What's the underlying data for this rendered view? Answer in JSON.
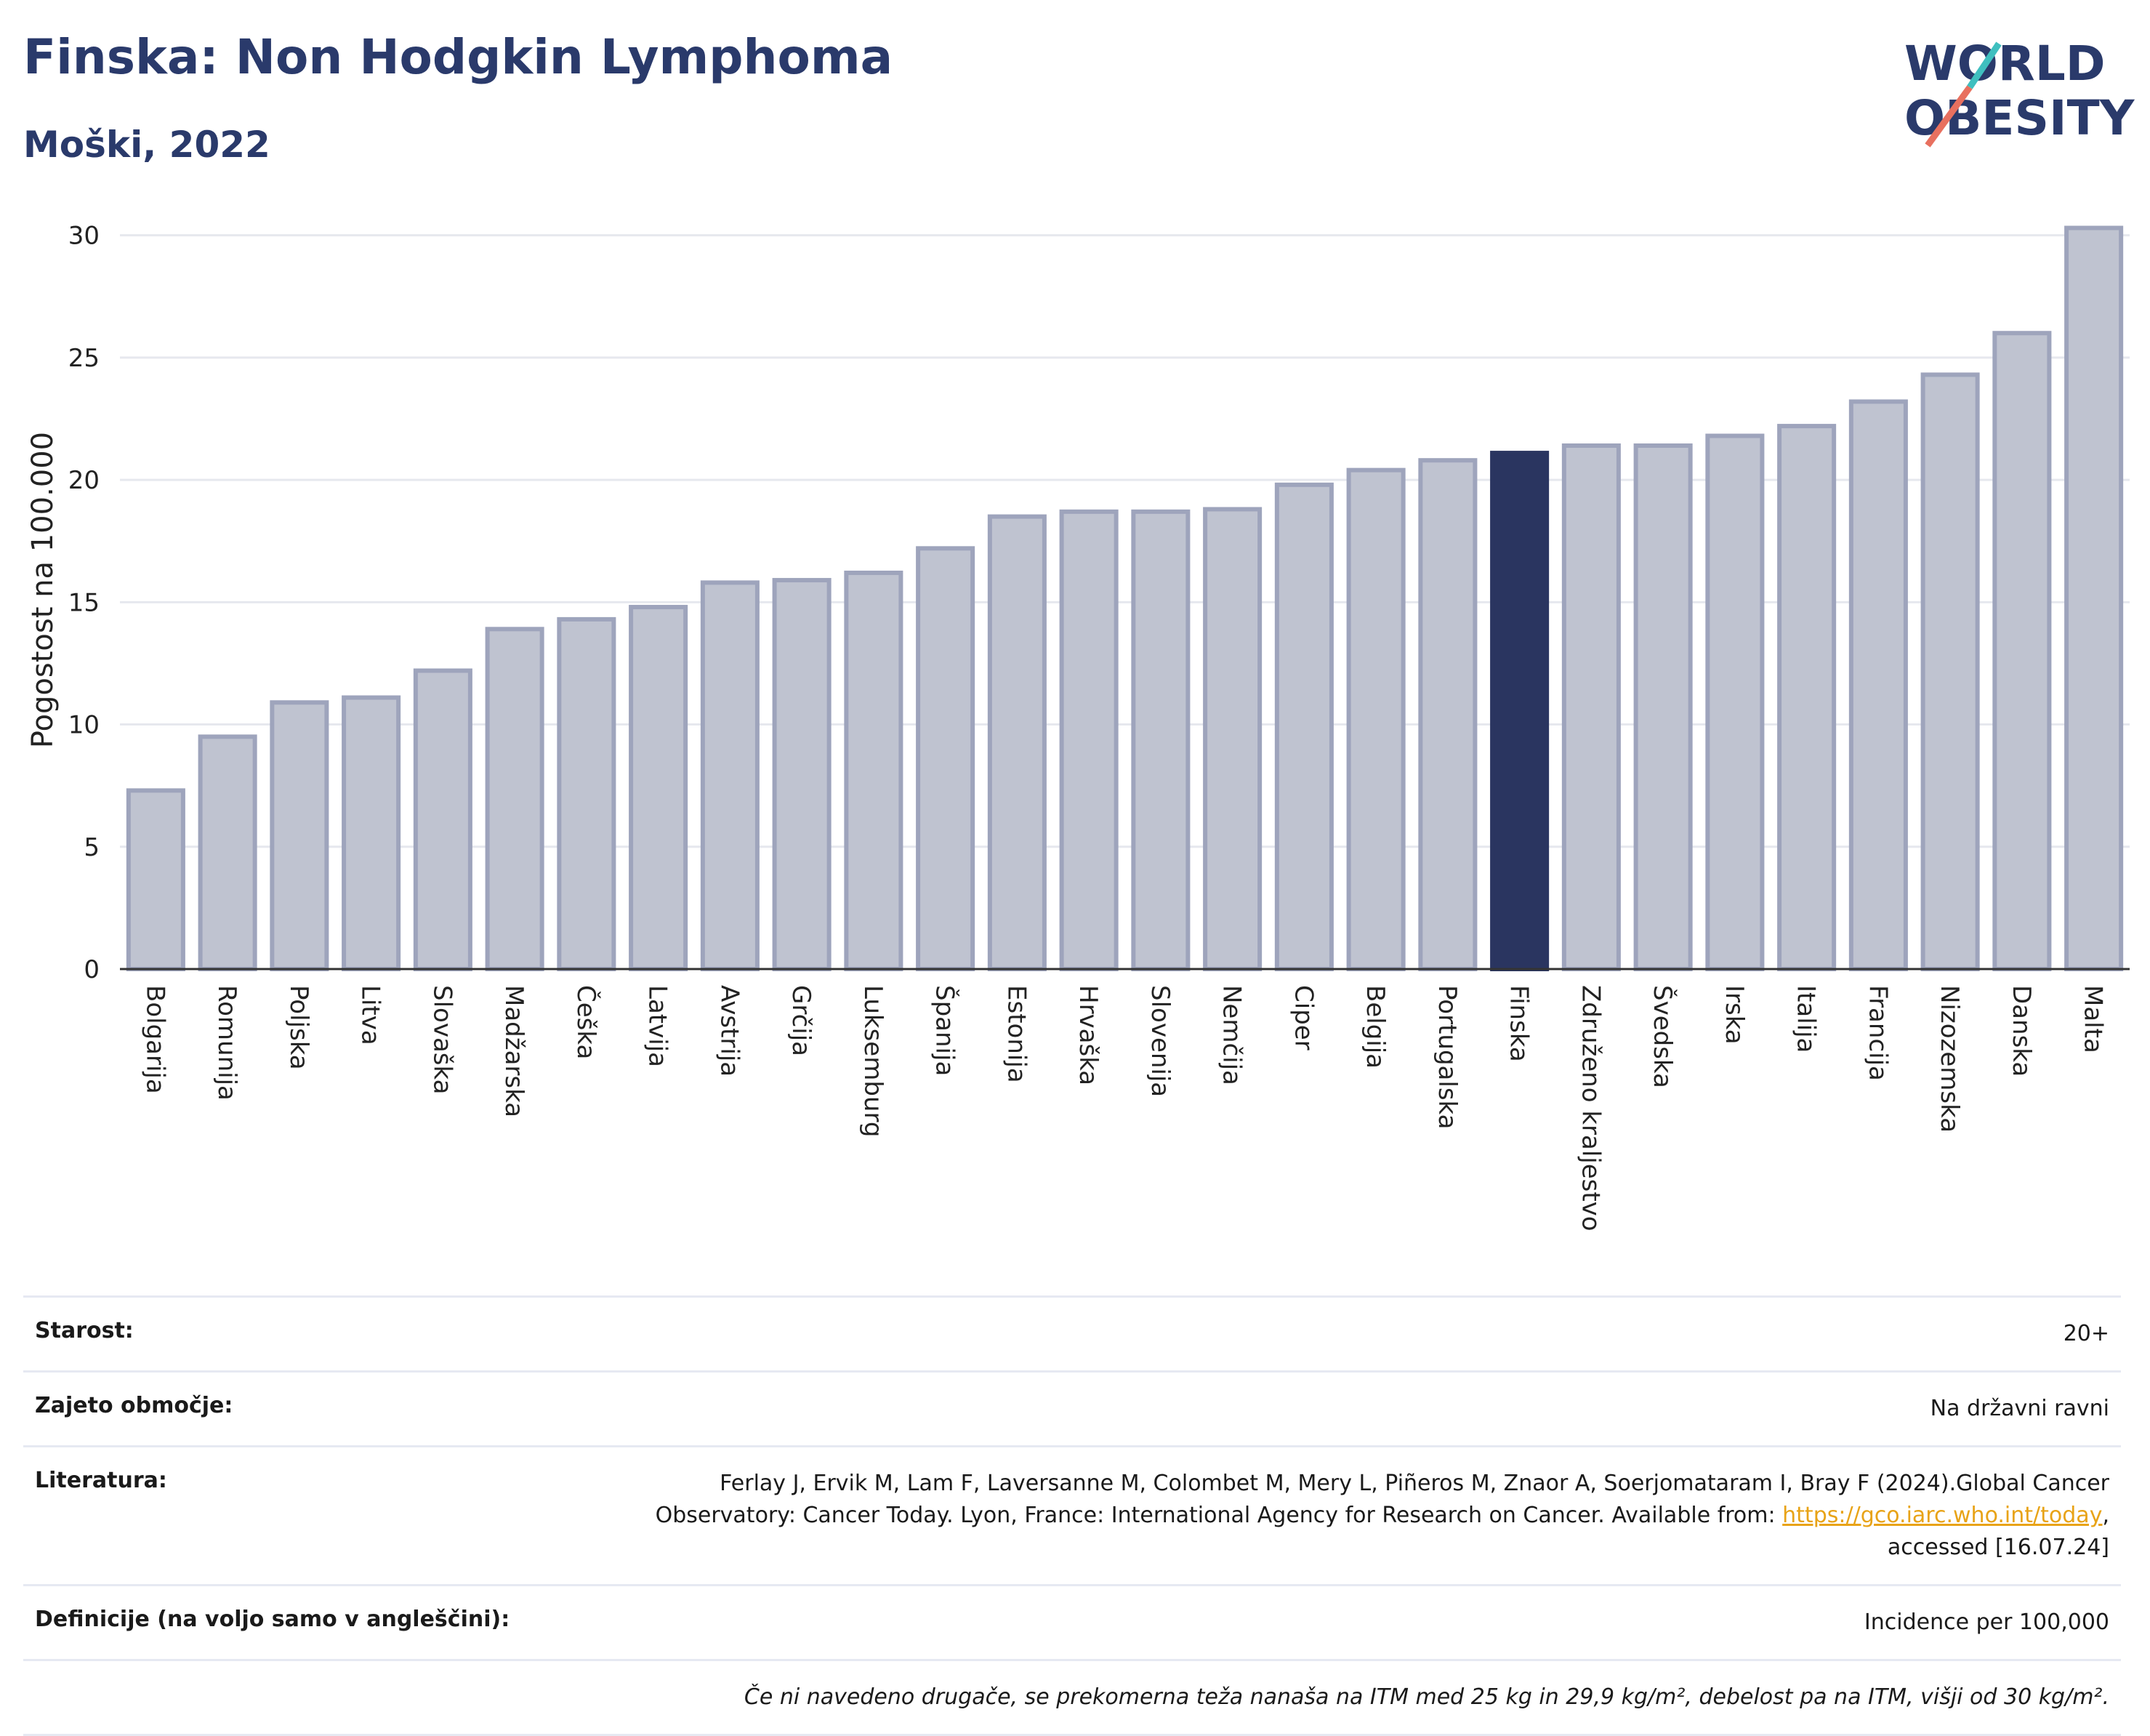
{
  "header": {
    "title": "Finska: Non Hodgkin Lymphoma",
    "subtitle": "Moški, 2022"
  },
  "logo": {
    "line1": "WORLD",
    "line2": "OBESITY"
  },
  "colors": {
    "bar": "#bfc3d0",
    "bar_border": "#9ea4bc",
    "highlight": "#2a3560",
    "grid": "#e6e8ee",
    "title": "#2a3a6b",
    "link": "#e8a317"
  },
  "chart_data": {
    "type": "bar",
    "ylabel": "Pogostost na 100.000",
    "xlabel": "",
    "ylim": [
      0,
      31
    ],
    "yticks": [
      0,
      5,
      10,
      15,
      20,
      25,
      30
    ],
    "grid": true,
    "highlight": "Finska",
    "categories": [
      "Bolgarija",
      "Romunija",
      "Poljska",
      "Litva",
      "Slovaška",
      "Madžarska",
      "Češka",
      "Latvija",
      "Avstrija",
      "Grčija",
      "Luksemburg",
      "Španija",
      "Estonija",
      "Hrvaška",
      "Slovenija",
      "Nemčija",
      "Ciper",
      "Belgija",
      "Portugalska",
      "Finska",
      "Združeno kraljestvo",
      "Švedska",
      "Irska",
      "Italija",
      "Francija",
      "Nizozemska",
      "Danska",
      "Malta"
    ],
    "values": [
      7.3,
      9.5,
      10.9,
      11.1,
      12.2,
      13.9,
      14.3,
      14.8,
      15.8,
      15.9,
      16.2,
      17.2,
      18.5,
      18.7,
      18.7,
      18.8,
      19.8,
      20.4,
      20.8,
      21.1,
      21.4,
      21.4,
      21.8,
      22.2,
      23.2,
      24.3,
      26.0,
      30.3
    ]
  },
  "info": {
    "age_label": "Starost:",
    "age_value": "20+",
    "coverage_label": "Zajeto območje:",
    "coverage_value": "Na državni ravni",
    "ref_label": "Literatura:",
    "ref_text": "Ferlay J, Ervik M, Lam F, Laversanne M, Colombet M, Mery L, Piñeros M, Znaor A, Soerjomataram I, Bray F (2024).Global Cancer Observatory: Cancer Today. Lyon, France: International Agency for Research on Cancer. Available from:",
    "ref_link": "https://gco.iarc.who.int/today",
    "ref_tail": ", accessed [16.07.24]",
    "def_label": "Definicije (na voljo samo v angleščini):",
    "def_value": "Incidence per 100,000",
    "note": "Če ni navedeno drugače, se prekomerna teža nanaša na ITM med 25 kg in 29,9 kg/m², debelost pa na ITM, višji od 30 kg/m²."
  }
}
